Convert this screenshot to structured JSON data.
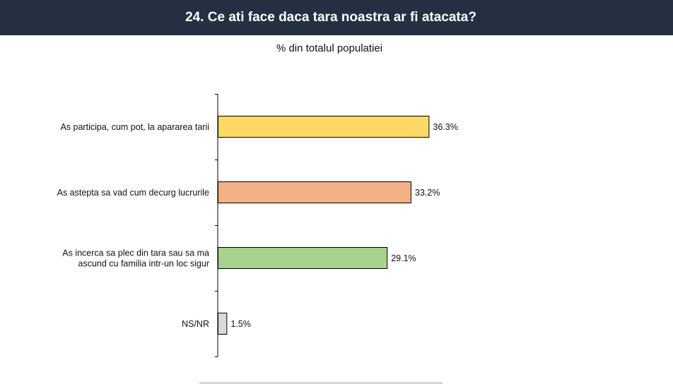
{
  "header": {
    "title": "24. Ce ati face daca tara noastra ar fi atacata?"
  },
  "chart_data": {
    "type": "bar",
    "orientation": "horizontal",
    "subtitle": "% din totalul populatiei",
    "categories": [
      [
        "As participa, cum pot, la apararea tarii"
      ],
      [
        "As astepta sa vad cum decurg lucrurile"
      ],
      [
        "As incerca sa plec din tara sau sa ma",
        "ascund cu familia intr-un loc sigur"
      ],
      [
        "NS/NR"
      ]
    ],
    "values": [
      36.3,
      33.2,
      29.1,
      1.5
    ],
    "value_labels": [
      "36.3%",
      "33.2%",
      "29.1%",
      "1.5%"
    ],
    "colors": [
      "#FFD966",
      "#F4B183",
      "#A9D18E",
      "#D9D9D9"
    ],
    "bar_border_color": "#000000",
    "xlim": [
      0,
      100
    ],
    "grid": false,
    "legend": "none"
  }
}
